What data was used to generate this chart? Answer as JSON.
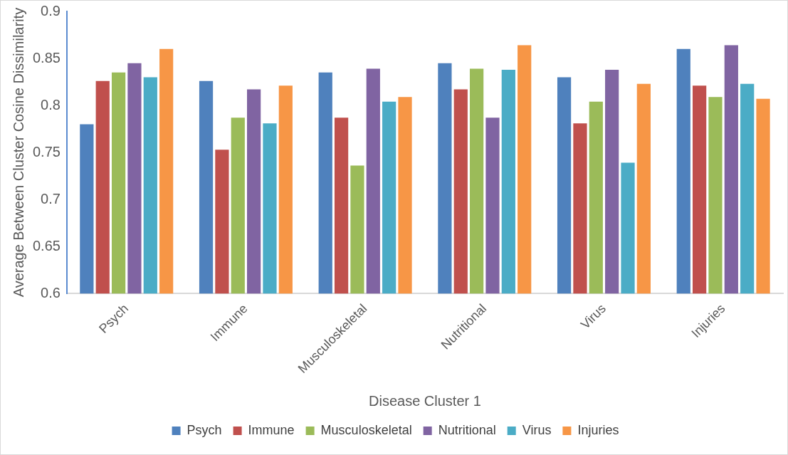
{
  "chart_data": {
    "type": "bar",
    "xlabel": "Disease Cluster 1",
    "ylabel": "Average Between Cluster Cosine Dissimilarity",
    "categories": [
      "Psych",
      "Immune",
      "Musculoskeletal",
      "Nutritional",
      "Virus",
      "Injuries"
    ],
    "series": [
      {
        "name": "Psych",
        "color": "#4f81bd",
        "values": [
          0.78,
          0.826,
          0.835,
          0.845,
          0.83,
          0.86
        ]
      },
      {
        "name": "Immune",
        "color": "#c0504d",
        "values": [
          0.826,
          0.753,
          0.787,
          0.817,
          0.781,
          0.821
        ]
      },
      {
        "name": "Musculoskeletal",
        "color": "#9bbb59",
        "values": [
          0.835,
          0.787,
          0.736,
          0.839,
          0.804,
          0.809
        ]
      },
      {
        "name": "Nutritional",
        "color": "#8064a2",
        "values": [
          0.845,
          0.817,
          0.839,
          0.787,
          0.838,
          0.864
        ]
      },
      {
        "name": "Virus",
        "color": "#4bacc6",
        "values": [
          0.83,
          0.781,
          0.804,
          0.838,
          0.739,
          0.823
        ]
      },
      {
        "name": "Injuries",
        "color": "#f79646",
        "values": [
          0.86,
          0.821,
          0.809,
          0.864,
          0.823,
          0.807
        ]
      }
    ],
    "ylim": [
      0.6,
      0.9
    ],
    "yticks": [
      0.6,
      0.65,
      0.7,
      0.75,
      0.8,
      0.85,
      0.9
    ],
    "grid": false,
    "legend": "bottom"
  }
}
